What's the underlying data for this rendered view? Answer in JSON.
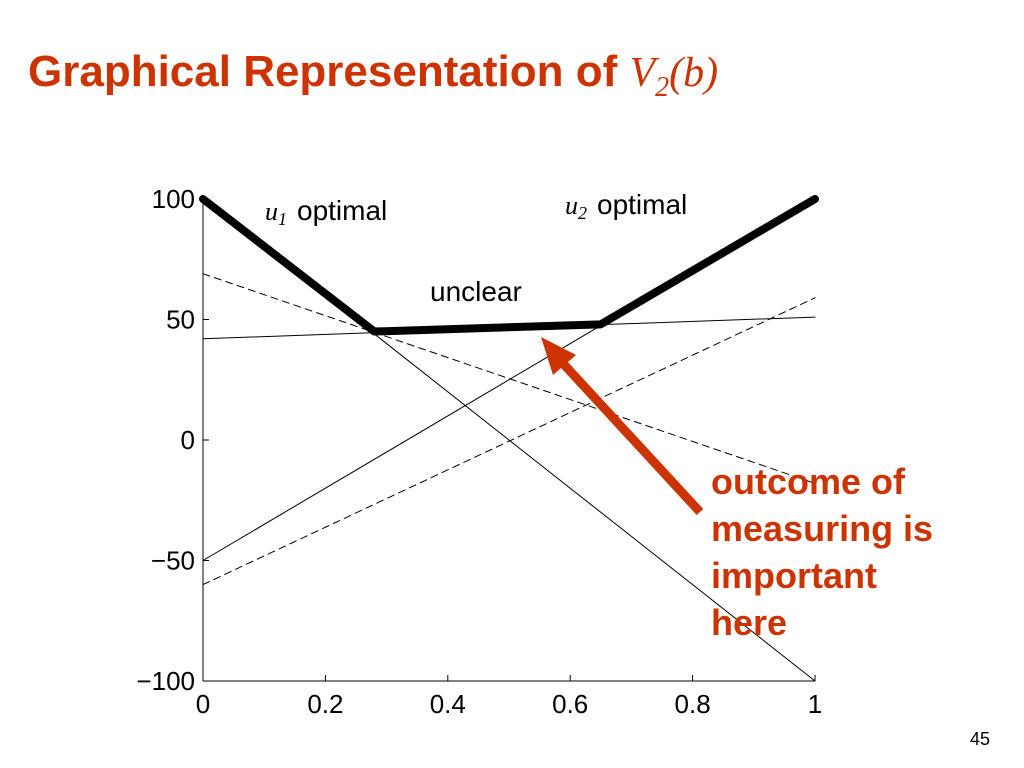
{
  "title": {
    "text": "Graphical Representation of",
    "math": {
      "base": "V",
      "sub": "2",
      "arg": "(b)"
    }
  },
  "chart_data": {
    "type": "line",
    "xlim": [
      0,
      1
    ],
    "ylim": [
      -100,
      100
    ],
    "xticks": [
      0,
      0.2,
      0.4,
      0.6,
      0.8,
      1
    ],
    "yticks": [
      {
        "value": -100,
        "label": "−100"
      },
      {
        "value": -50,
        "label": "−50"
      },
      0,
      50,
      100
    ],
    "series": [
      {
        "x": [
          0,
          1
        ],
        "values": [
          100,
          -100
        ],
        "color": "#000000",
        "style": "solid"
      },
      {
        "x": [
          0,
          1
        ],
        "values": [
          -50,
          100
        ],
        "color": "#000000",
        "style": "solid"
      },
      {
        "x": [
          0,
          1
        ],
        "values": [
          42,
          51
        ],
        "color": "#000000",
        "style": "solid"
      },
      {
        "x": [
          0,
          1
        ],
        "values": [
          69,
          -18
        ],
        "color": "#000000",
        "style": "dashed"
      },
      {
        "x": [
          0,
          1
        ],
        "values": [
          -60,
          59
        ],
        "color": "#000000",
        "style": "dashed"
      },
      {
        "x": [
          0,
          0.28,
          0.65,
          1
        ],
        "values": [
          100,
          45,
          48,
          100
        ],
        "color": "#000000",
        "style": "thick"
      }
    ],
    "annotations": [
      {
        "var": "u",
        "sub": "1",
        "text": "optimal"
      },
      {
        "var": "u",
        "sub": "2",
        "text": "optimal"
      },
      {
        "text": "unclear"
      }
    ]
  },
  "callout": {
    "lines": [
      "outcome of",
      "measuring is",
      "important",
      "here"
    ],
    "color": "#cc3300"
  },
  "page_number": "45"
}
